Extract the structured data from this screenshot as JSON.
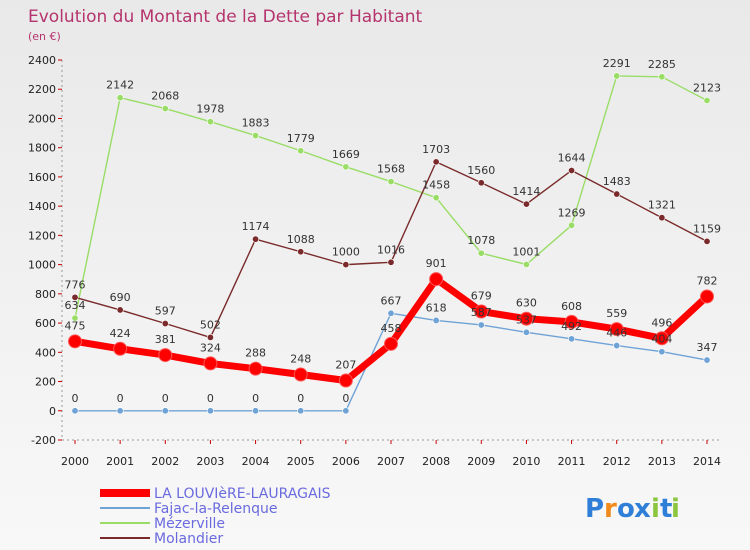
{
  "chart_data": {
    "type": "line",
    "title": "Evolution du Montant de la Dette par Habitant",
    "subtitle": "(en €)",
    "xlabel": "",
    "ylabel": "",
    "ylim": [
      -200,
      2400
    ],
    "yticks": [
      -200,
      0,
      200,
      400,
      600,
      800,
      1000,
      1200,
      1400,
      1600,
      1800,
      2000,
      2200,
      2400
    ],
    "ytick_labels": [
      "-200",
      "0",
      "200",
      "400",
      "600",
      "800",
      "1000",
      "1200",
      "1400",
      "1600",
      "1800",
      "2000",
      "2200",
      "2400"
    ],
    "categories": [
      "2000",
      "2001",
      "2002",
      "2003",
      "2004",
      "2005",
      "2006",
      "2007",
      "2008",
      "2009",
      "2010",
      "2011",
      "2012",
      "2013",
      "2014"
    ],
    "grid": false,
    "legend_position": "bottom-left",
    "series": [
      {
        "name": "LA LOUVIèRE-LAURAGAIS",
        "color": "#ff0000",
        "values": [
          475,
          424,
          381,
          324,
          288,
          248,
          207,
          458,
          901,
          679,
          630,
          608,
          559,
          496,
          782
        ],
        "labels": [
          "475",
          "424",
          "381",
          "324",
          "288",
          "248",
          "207",
          "458",
          "901",
          "679",
          "630",
          "608",
          "559",
          "496",
          "782"
        ]
      },
      {
        "name": "Fajac-la-Relenque",
        "color": "#6fa3d6",
        "values": [
          0,
          0,
          0,
          0,
          0,
          0,
          0,
          667,
          618,
          587,
          537,
          492,
          446,
          404,
          347
        ],
        "labels": [
          "0",
          "0",
          "0",
          "0",
          "0",
          "0",
          "0",
          "667",
          "618",
          "587",
          "537",
          "492",
          "446",
          "404",
          "347"
        ]
      },
      {
        "name": "Mézerville",
        "color": "#99dd66",
        "values": [
          634,
          2142,
          2068,
          1978,
          1883,
          1779,
          1669,
          1568,
          1458,
          1078,
          1001,
          1269,
          2291,
          2285,
          2123
        ],
        "labels": [
          "634",
          "2142",
          "2068",
          "1978",
          "1883",
          "1779",
          "1669",
          "1568",
          "1458",
          "1078",
          "1001",
          "1269",
          "2291",
          "2285",
          "2123"
        ]
      },
      {
        "name": "Molandier",
        "color": "#7a2a2a",
        "values": [
          776,
          690,
          597,
          502,
          1174,
          1088,
          1000,
          1016,
          1703,
          1560,
          1414,
          1644,
          1483,
          1321,
          1159
        ],
        "labels": [
          "776",
          "690",
          "597",
          "502",
          "1174",
          "1088",
          "1000",
          "1016",
          "1703",
          "1560",
          "1414",
          "1644",
          "1483",
          "1321",
          "1159"
        ]
      }
    ]
  },
  "logo": {
    "text": "Proxiti",
    "letters": [
      "P",
      "r",
      "o",
      "x",
      "i",
      "t",
      "i"
    ],
    "colors": [
      "#2f7fd8",
      "#f08a1a",
      "#2f7fd8",
      "#2f7fd8",
      "#8cc63f",
      "#2f7fd8",
      "#8cc63f"
    ]
  }
}
